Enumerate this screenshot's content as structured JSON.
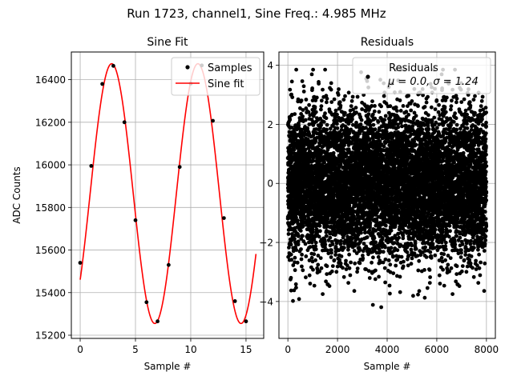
{
  "figure": {
    "suptitle": "Run 1723, channel1, Sine Freq.: 4.985 MHz"
  },
  "chart_data": [
    {
      "type": "scatter",
      "title": "Sine Fit",
      "xlabel": "Sample #",
      "ylabel": "ADC Counts",
      "xlim": [
        -0.8,
        16.6
      ],
      "ylim": [
        15185,
        16530
      ],
      "xticks": [
        0,
        5,
        10,
        15
      ],
      "yticks": [
        15200,
        15400,
        15600,
        15800,
        16000,
        16200,
        16400
      ],
      "grid": true,
      "legend_position": "top-right",
      "series": [
        {
          "name": "Samples",
          "kind": "points",
          "color": "#000000",
          "x": [
            0,
            1,
            2,
            3,
            4,
            5,
            6,
            7,
            8,
            9,
            10,
            11,
            12,
            13,
            14,
            15
          ],
          "y": [
            15540,
            15995,
            16380,
            16465,
            16200,
            15740,
            15355,
            15265,
            15530,
            15990,
            16382,
            16467,
            16207,
            15750,
            15360,
            15265
          ]
        },
        {
          "name": "Sine fit",
          "kind": "line",
          "color": "#ff0000",
          "function": {
            "offset": 15865,
            "amplitude": 610,
            "period": 7.8,
            "phase_center_x": 2.85,
            "x_range": [
              0,
              15.9
            ]
          }
        }
      ]
    },
    {
      "type": "scatter",
      "title": "Residuals",
      "xlabel": "Sample #",
      "ylabel": "",
      "xlim": [
        -360,
        8360
      ],
      "ylim": [
        -5.25,
        4.45
      ],
      "xticks": [
        0,
        2000,
        4000,
        6000,
        8000
      ],
      "yticks": [
        -4,
        -2,
        0,
        2,
        4
      ],
      "grid": true,
      "legend_position": "top-right",
      "series": [
        {
          "name": "Residuals",
          "kind": "points",
          "color": "#000000",
          "n_points": 8000,
          "x_range": [
            0,
            7999
          ],
          "mean": 0.0,
          "std": 1.24
        }
      ],
      "legend_stats_text": "μ = 0.0, σ = 1.24"
    }
  ]
}
